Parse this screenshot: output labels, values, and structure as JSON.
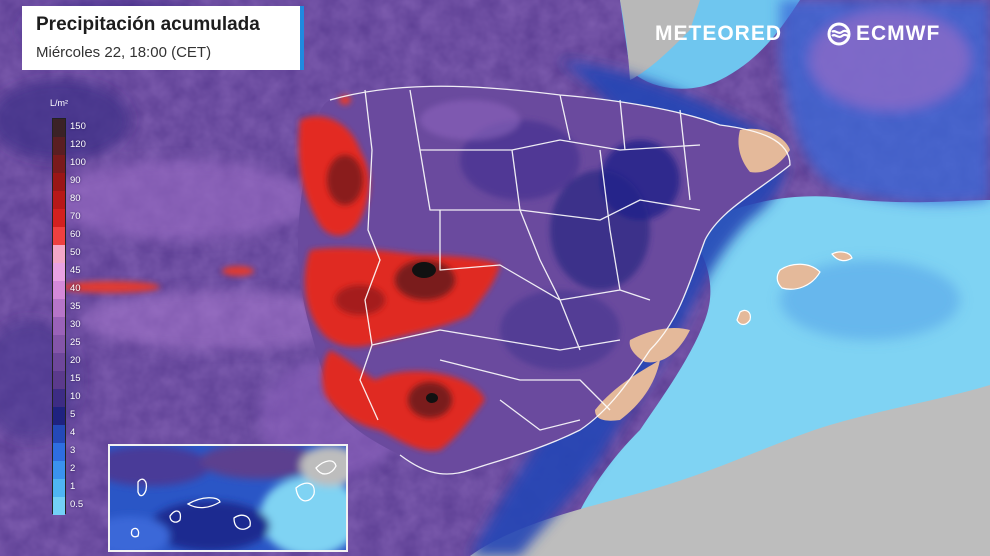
{
  "header": {
    "title": "Precipitación acumulada",
    "subtitle": "Miércoles 22, 18:00 (CET)"
  },
  "brands": {
    "meteored": "METEORED",
    "ecmwf": "ECMWF"
  },
  "legend": {
    "unit": "L/m²",
    "steps": [
      {
        "label": "150",
        "color": "#3b2226"
      },
      {
        "label": "120",
        "color": "#5a1e22"
      },
      {
        "label": "100",
        "color": "#7a1a1c"
      },
      {
        "label": "90",
        "color": "#9a1616"
      },
      {
        "label": "80",
        "color": "#b71818"
      },
      {
        "label": "70",
        "color": "#d3201f"
      },
      {
        "label": "60",
        "color": "#ee4040"
      },
      {
        "label": "50",
        "color": "#f3a7c7"
      },
      {
        "label": "45",
        "color": "#e9a2e2"
      },
      {
        "label": "40",
        "color": "#d489d8"
      },
      {
        "label": "35",
        "color": "#b675c8"
      },
      {
        "label": "30",
        "color": "#9a62b8"
      },
      {
        "label": "25",
        "color": "#8455a8"
      },
      {
        "label": "20",
        "color": "#6e479a"
      },
      {
        "label": "15",
        "color": "#5b3a8c"
      },
      {
        "label": "10",
        "color": "#3d2c84"
      },
      {
        "label": "5",
        "color": "#1f2280"
      },
      {
        "label": "4",
        "color": "#2449b8"
      },
      {
        "label": "3",
        "color": "#2e6ee0"
      },
      {
        "label": "2",
        "color": "#3a92ef"
      },
      {
        "label": "1",
        "color": "#4fb5f3"
      },
      {
        "label": "0.5",
        "color": "#73d0f6"
      }
    ]
  },
  "colors": {
    "sea_dry": "#7fd3f3",
    "land_dry": "#b5b5b5",
    "dry_area": "#e4b99a",
    "border": "#ffffff",
    "accent": "#1f8ae0"
  }
}
